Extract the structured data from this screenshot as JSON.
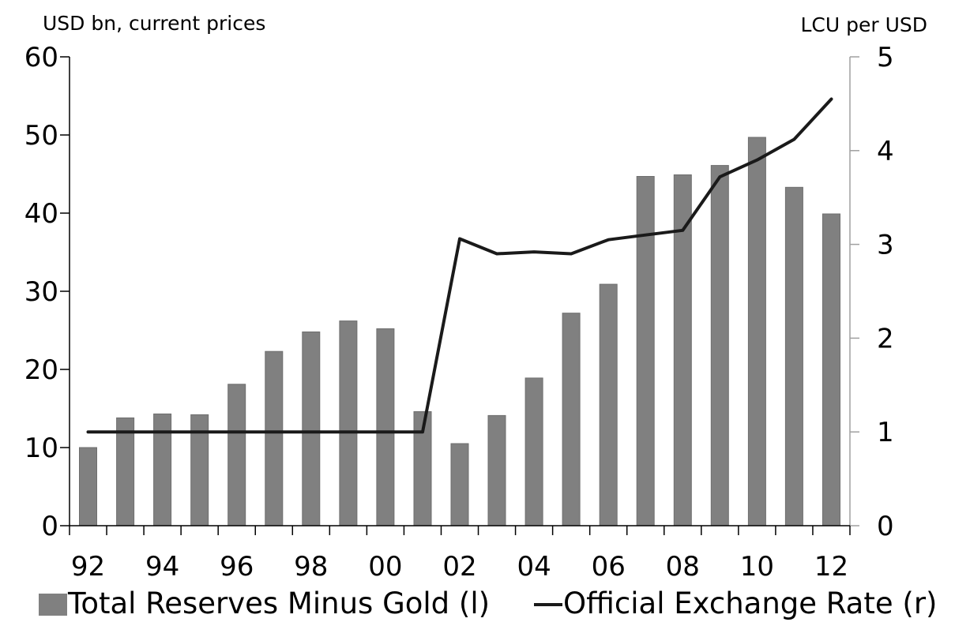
{
  "colors": {
    "bar": "#808080",
    "line": "#1a1a1a",
    "axis": "#000000",
    "right_axis": "#a0a0a0"
  },
  "chart_data": {
    "type": "bar",
    "title": "",
    "left_axis_title": "USD bn, current prices",
    "right_axis_title": "LCU per USD",
    "ylim_left": [
      0,
      60
    ],
    "yticks_left": [
      "0",
      "10",
      "20",
      "30",
      "40",
      "50",
      "60"
    ],
    "ylim_right": [
      0,
      5
    ],
    "yticks_right": [
      "0",
      "1",
      "2",
      "3",
      "4",
      "5"
    ],
    "x_tick_labels": [
      "92",
      "94",
      "96",
      "98",
      "00",
      "02",
      "04",
      "06",
      "08",
      "10",
      "12"
    ],
    "categories": [
      "1992",
      "1993",
      "1994",
      "1995",
      "1996",
      "1997",
      "1998",
      "1999",
      "2000",
      "2001",
      "2002",
      "2003",
      "2004",
      "2005",
      "2006",
      "2007",
      "2008",
      "2009",
      "2010",
      "2011",
      "2012"
    ],
    "grid": false,
    "legend_position": "bottom",
    "series": [
      {
        "name": "Total Reserves Minus Gold (l)",
        "kind": "bar",
        "axis": "left",
        "values": [
          10.0,
          13.8,
          14.3,
          14.2,
          18.1,
          22.3,
          24.8,
          26.2,
          25.2,
          14.6,
          10.5,
          14.1,
          18.9,
          27.2,
          30.9,
          44.7,
          44.9,
          46.1,
          49.7,
          43.3,
          39.9
        ]
      },
      {
        "name": "Official Exchange Rate (r)",
        "kind": "line",
        "axis": "right",
        "values": [
          1.0,
          1.0,
          1.0,
          1.0,
          1.0,
          1.0,
          1.0,
          1.0,
          1.0,
          1.0,
          3.06,
          2.9,
          2.92,
          2.9,
          3.05,
          3.1,
          3.15,
          3.72,
          3.9,
          4.12,
          4.55
        ]
      }
    ]
  }
}
